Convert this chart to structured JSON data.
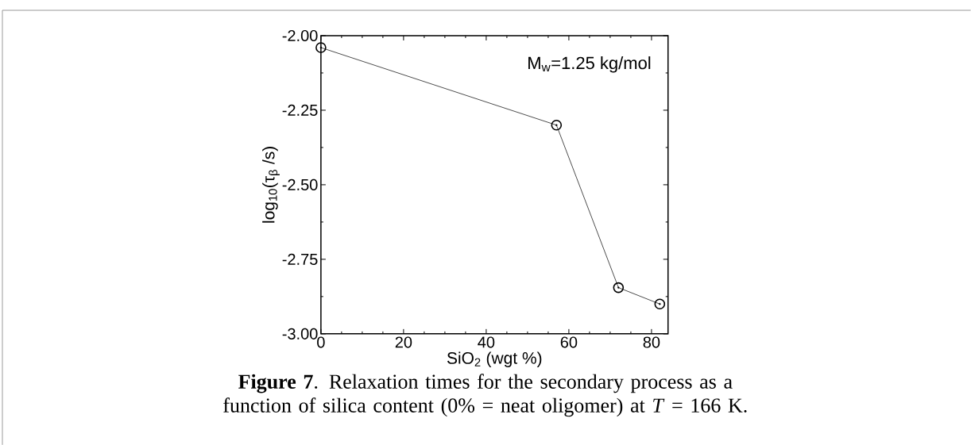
{
  "chart_data": {
    "type": "line",
    "xlabel": "SiO$_{2}$ (wgt %)",
    "ylabel": "log$_{10}$(τ$_{β}$ /s)",
    "x": [
      0,
      57,
      72,
      82
    ],
    "series": [
      {
        "color": "#000000",
        "values": [
          -2.04,
          -2.3,
          -2.845,
          -2.9
        ]
      }
    ],
    "xlim": [
      0,
      84
    ],
    "ylim": [
      -3,
      -2
    ],
    "xticks": [
      0,
      20,
      40,
      60,
      80
    ],
    "yticks": [
      {
        "value": -3,
        "label": "-3.00"
      },
      {
        "value": -2.75,
        "label": "-2.75"
      },
      {
        "value": -2.5,
        "label": "-2.50"
      },
      {
        "value": -2.25,
        "label": "-2.25"
      },
      {
        "value": -2,
        "label": "-2.00"
      }
    ],
    "marker": "circle",
    "line_style": "solid",
    "grid": false,
    "annotations": [
      "M$_{w}$=1.25 kg/mol",
      "**Figure 7**. Relaxation times for the secondary process as a function of silica content (0% = neat oligomer) at *T* = 166 K."
    ]
  }
}
